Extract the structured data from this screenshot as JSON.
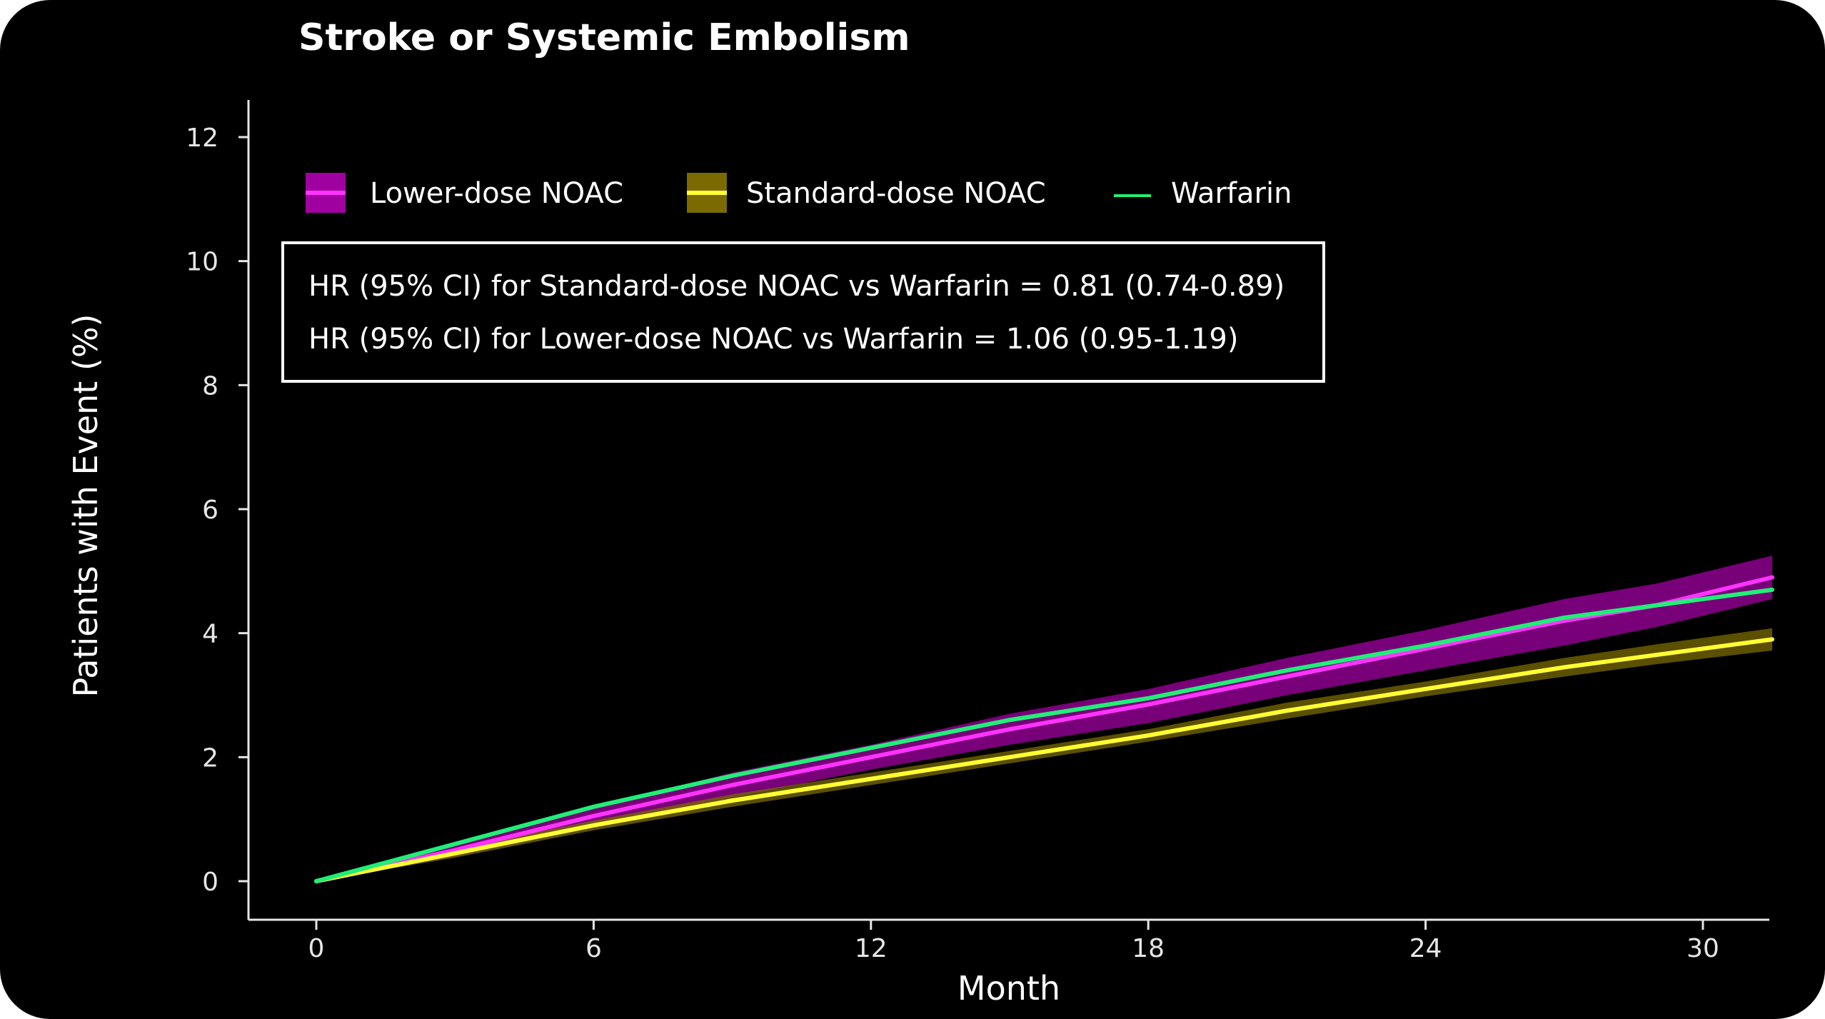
{
  "chart_data": {
    "type": "line",
    "title": "Stroke or Systemic Embolism",
    "xlabel": "Month",
    "ylabel": "Patients with Event (%)",
    "xlim": [
      0,
      31
    ],
    "ylim": [
      0,
      12
    ],
    "xticks": [
      0,
      6,
      12,
      18,
      24,
      30
    ],
    "yticks": [
      0,
      2,
      4,
      6,
      8,
      10,
      12
    ],
    "x": [
      0,
      3,
      6,
      9,
      12,
      15,
      18,
      21,
      24,
      27,
      29,
      31.5
    ],
    "series": [
      {
        "name": "Lower-dose NOAC",
        "color": "#ff33ff",
        "band_color": "#a000a0",
        "values": [
          0,
          0.5,
          1.05,
          1.55,
          2.0,
          2.45,
          2.85,
          3.3,
          3.75,
          4.2,
          4.45,
          4.9
        ],
        "ci_lower": [
          0,
          0.4,
          0.9,
          1.35,
          1.8,
          2.2,
          2.55,
          3.0,
          3.4,
          3.8,
          4.1,
          4.55
        ],
        "ci_upper": [
          0,
          0.6,
          1.2,
          1.75,
          2.2,
          2.7,
          3.1,
          3.6,
          4.05,
          4.55,
          4.8,
          5.25
        ]
      },
      {
        "name": "Standard-dose NOAC",
        "color": "#ffff33",
        "band_color": "#7a6a00",
        "values": [
          0,
          0.45,
          0.9,
          1.3,
          1.65,
          2.0,
          2.35,
          2.75,
          3.1,
          3.45,
          3.65,
          3.9
        ],
        "ci_lower": [
          0,
          0.38,
          0.82,
          1.2,
          1.55,
          1.9,
          2.25,
          2.62,
          2.98,
          3.3,
          3.5,
          3.72
        ],
        "ci_upper": [
          0,
          0.52,
          0.98,
          1.4,
          1.75,
          2.1,
          2.45,
          2.88,
          3.22,
          3.6,
          3.82,
          4.08
        ]
      },
      {
        "name": "Warfarin",
        "color": "#22ee77",
        "values": [
          0,
          0.6,
          1.2,
          1.7,
          2.15,
          2.6,
          2.95,
          3.4,
          3.8,
          4.25,
          4.45,
          4.7
        ]
      }
    ],
    "legend": {
      "position": "top-left",
      "items": [
        "Lower-dose NOAC",
        "Standard-dose NOAC",
        "Warfarin"
      ]
    },
    "annotations": [
      "HR (95% CI) for Standard-dose NOAC vs Warfarin = 0.81 (0.74-0.89)",
      "HR (95% CI) for Lower-dose NOAC vs Warfarin = 1.06 (0.95-1.19)"
    ],
    "grid": false
  }
}
